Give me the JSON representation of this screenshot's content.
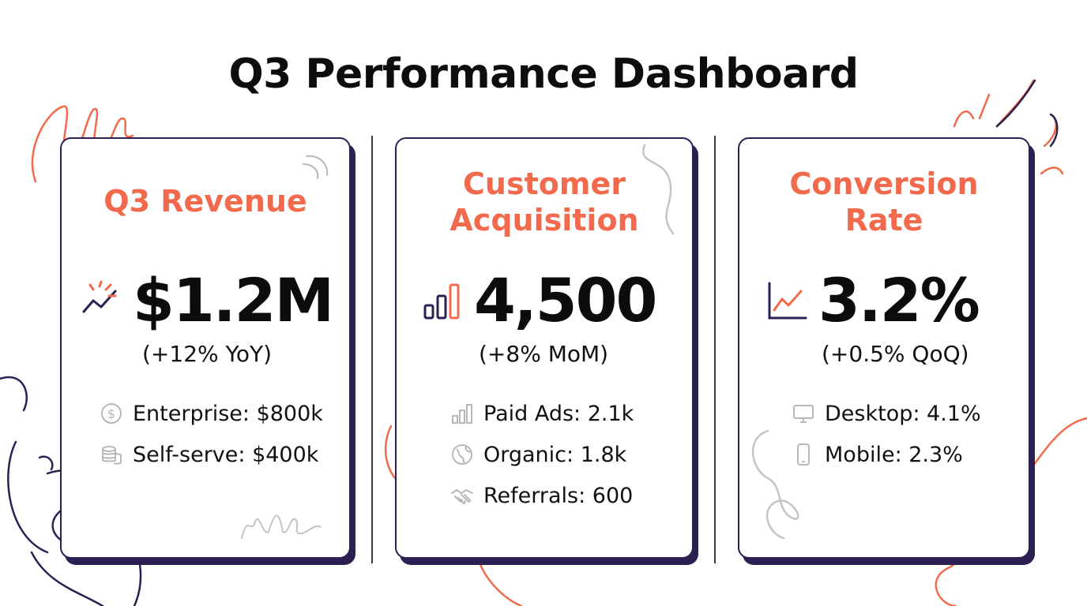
{
  "dashboard": {
    "title": "Q3 Performance Dashboard"
  },
  "colors": {
    "accent": "#f26a4b",
    "navy": "#2b2051",
    "text": "#0c0c0c",
    "muted": "#b8b8b8"
  },
  "cards": [
    {
      "title": "Q3 Revenue",
      "value": "$1.2M",
      "change": "(+12% YoY)",
      "icon": "trend-spark-icon",
      "breakdown": [
        {
          "label": "Enterprise: $800k",
          "icon": "dollar-coin-icon"
        },
        {
          "label": "Self-serve: $400k",
          "icon": "coin-stack-icon"
        }
      ]
    },
    {
      "title_lines": [
        "Customer",
        "Acquisition"
      ],
      "value": "4,500",
      "change": "(+8% MoM)",
      "icon": "bar-chart-icon",
      "breakdown": [
        {
          "label": "Paid Ads: 2.1k",
          "icon": "bar-chart-icon"
        },
        {
          "label": "Organic: 1.8k",
          "icon": "globe-icon"
        },
        {
          "label": "Referrals: 600",
          "icon": "handshake-icon"
        }
      ]
    },
    {
      "title_lines": [
        "Conversion",
        "Rate"
      ],
      "value": "3.2%",
      "change": "(+0.5% QoQ)",
      "icon": "line-chart-icon",
      "breakdown": [
        {
          "label": "Desktop: 4.1%",
          "icon": "monitor-icon"
        },
        {
          "label": "Mobile: 2.3%",
          "icon": "phone-icon"
        }
      ]
    }
  ]
}
